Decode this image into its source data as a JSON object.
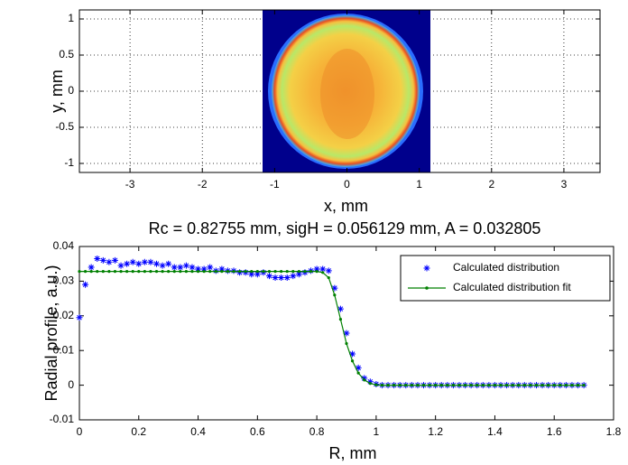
{
  "chart_data": [
    {
      "type": "image",
      "xlabel": "x, mm",
      "ylabel": "y, mm",
      "xlim": [
        -3.7,
        3.5
      ],
      "xticks": [
        -3,
        -2,
        -1,
        0,
        1,
        2,
        3
      ],
      "ylim": [
        -1.125,
        1.125
      ],
      "yticks": [
        -1,
        -0.5,
        0,
        0.5,
        1
      ],
      "grid": true
    },
    {
      "type": "scatter_line",
      "title": "Rc = 0.82755 mm,  sigH = 0.056129 mm,  A = 0.032805",
      "xlabel": "R, mm",
      "ylabel": "Radial profile, a.u.)",
      "xlim": [
        0,
        1.8
      ],
      "xticks": [
        0,
        0.2,
        0.4,
        0.6,
        0.8,
        1,
        1.2,
        1.4,
        1.6,
        1.8
      ],
      "ylim": [
        -0.01,
        0.04
      ],
      "yticks": [
        -0.01,
        0,
        0.01,
        0.02,
        0.03,
        0.04
      ],
      "grid": false,
      "legend": "upper right",
      "x": [
        0,
        0.02,
        0.04,
        0.06,
        0.08,
        0.1,
        0.12,
        0.14,
        0.16,
        0.18,
        0.2,
        0.22,
        0.24,
        0.26,
        0.28,
        0.3,
        0.32,
        0.34,
        0.36,
        0.38,
        0.4,
        0.42,
        0.44,
        0.46,
        0.48,
        0.5,
        0.52,
        0.54,
        0.56,
        0.58,
        0.6,
        0.62,
        0.64,
        0.66,
        0.68,
        0.7,
        0.72,
        0.74,
        0.76,
        0.78,
        0.8,
        0.82,
        0.84,
        0.86,
        0.88,
        0.9,
        0.92,
        0.94,
        0.96,
        0.98,
        1,
        1.02,
        1.04,
        1.06,
        1.08,
        1.1,
        1.12,
        1.14,
        1.16,
        1.18,
        1.2,
        1.22,
        1.24,
        1.26,
        1.28,
        1.3,
        1.32,
        1.34,
        1.36,
        1.38,
        1.4,
        1.42,
        1.44,
        1.46,
        1.48,
        1.5,
        1.52,
        1.54,
        1.56,
        1.58,
        1.6,
        1.62,
        1.64,
        1.66,
        1.68,
        1.7
      ],
      "series": [
        {
          "name": "Calculated distribution",
          "color": "#0000ff",
          "marker": "asterisk",
          "values": [
            0.0195,
            0.029,
            0.034,
            0.0365,
            0.036,
            0.0355,
            0.036,
            0.0345,
            0.035,
            0.0355,
            0.035,
            0.0355,
            0.0355,
            0.035,
            0.0345,
            0.035,
            0.034,
            0.034,
            0.0345,
            0.034,
            0.0335,
            0.0335,
            0.034,
            0.033,
            0.0335,
            0.033,
            0.033,
            0.0325,
            0.0325,
            0.032,
            0.032,
            0.0325,
            0.0315,
            0.031,
            0.031,
            0.031,
            0.0315,
            0.032,
            0.0325,
            0.033,
            0.0335,
            0.0335,
            0.033,
            0.028,
            0.022,
            0.015,
            0.009,
            0.005,
            0.002,
            0.001,
            0.0003,
            0,
            0,
            0,
            0,
            0,
            0,
            0,
            0,
            0,
            0,
            0,
            0,
            0,
            0,
            0,
            0,
            0,
            0,
            0,
            0,
            0,
            0,
            0,
            0,
            0,
            0,
            0,
            0,
            0,
            0,
            0,
            0,
            0,
            0,
            0
          ]
        },
        {
          "name": "Calculated distribution fit",
          "color": "#008000",
          "marker": "line-dot",
          "values": [
            0.0328,
            0.0328,
            0.0328,
            0.0328,
            0.0328,
            0.0328,
            0.0328,
            0.0328,
            0.0328,
            0.0328,
            0.0328,
            0.0328,
            0.0328,
            0.0328,
            0.0328,
            0.0328,
            0.0328,
            0.0328,
            0.0328,
            0.0328,
            0.0328,
            0.0328,
            0.0328,
            0.0328,
            0.0328,
            0.0328,
            0.0328,
            0.0328,
            0.0328,
            0.0328,
            0.0328,
            0.0328,
            0.0328,
            0.0328,
            0.0328,
            0.0328,
            0.0328,
            0.0328,
            0.0328,
            0.0328,
            0.0328,
            0.0325,
            0.031,
            0.026,
            0.019,
            0.012,
            0.007,
            0.0035,
            0.0015,
            0.0005,
            0.0001,
            0,
            0,
            0,
            0,
            0,
            0,
            0,
            0,
            0,
            0,
            0,
            0,
            0,
            0,
            0,
            0,
            0,
            0,
            0,
            0,
            0,
            0,
            0,
            0,
            0,
            0,
            0,
            0,
            0,
            0,
            0,
            0,
            0,
            0,
            0
          ]
        }
      ]
    }
  ]
}
